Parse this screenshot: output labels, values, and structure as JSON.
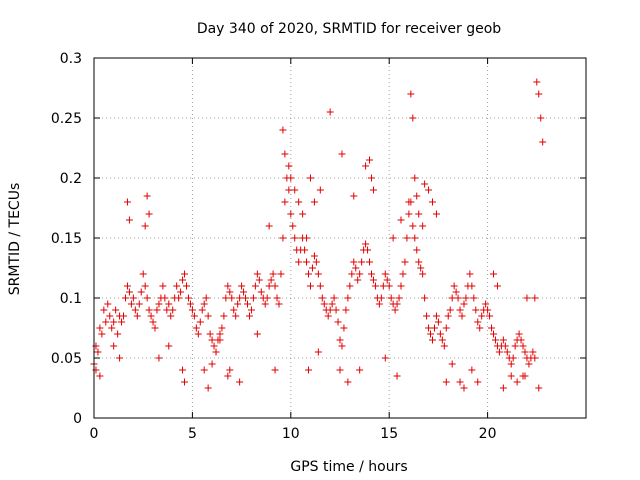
{
  "chart_data": {
    "type": "scatter",
    "title": "Day 340 of 2020, SRMTID for receiver geob",
    "xlabel": "GPS time / hours",
    "ylabel": "SRMTID / TECUs",
    "xlim": [
      0,
      25
    ],
    "ylim": [
      0,
      0.3
    ],
    "x_ticks": [
      0,
      5,
      10,
      15,
      20
    ],
    "x_tick_labels": [
      "0",
      "5",
      "10",
      "15",
      "20"
    ],
    "y_ticks": [
      0,
      0.05,
      0.1,
      0.15,
      0.2,
      0.25,
      0.3
    ],
    "y_tick_labels": [
      "0",
      "0.05",
      "0.1",
      "0.15",
      "0.2",
      "0.25",
      "0.3"
    ],
    "grid": true,
    "marker": "plus",
    "color": "#e00000",
    "series": [
      {
        "name": "SRMTID",
        "x": [
          0.0,
          0.1,
          0.2,
          0.3,
          0.4,
          0.5,
          0.6,
          0.7,
          0.8,
          0.9,
          1.0,
          1.1,
          1.2,
          1.3,
          1.4,
          1.5,
          1.6,
          1.7,
          1.8,
          1.9,
          2.0,
          2.1,
          2.2,
          2.3,
          2.4,
          2.5,
          2.6,
          2.7,
          2.8,
          2.9,
          3.0,
          3.1,
          3.2,
          3.3,
          3.4,
          3.5,
          3.6,
          3.7,
          3.8,
          3.9,
          4.0,
          4.1,
          4.2,
          4.3,
          4.4,
          4.5,
          4.6,
          4.7,
          4.8,
          4.9,
          5.0,
          5.1,
          5.2,
          5.3,
          5.4,
          5.5,
          5.6,
          5.7,
          5.8,
          5.9,
          6.0,
          6.1,
          6.2,
          6.3,
          6.4,
          6.5,
          6.6,
          6.7,
          6.8,
          6.9,
          7.0,
          7.1,
          7.2,
          7.3,
          7.4,
          7.5,
          7.6,
          7.7,
          7.8,
          7.9,
          8.0,
          8.1,
          8.2,
          8.3,
          8.4,
          8.5,
          8.6,
          8.7,
          8.8,
          8.9,
          9.0,
          9.1,
          9.2,
          9.3,
          9.4,
          9.5,
          9.6,
          9.7,
          9.8,
          9.9,
          10.0,
          10.1,
          10.2,
          10.3,
          10.4,
          10.5,
          10.6,
          10.7,
          10.8,
          10.9,
          11.0,
          11.1,
          11.2,
          11.3,
          11.4,
          11.5,
          11.6,
          11.7,
          11.8,
          11.9,
          12.0,
          12.1,
          12.2,
          12.3,
          12.4,
          12.5,
          12.6,
          12.7,
          12.8,
          12.9,
          13.0,
          13.1,
          13.2,
          13.3,
          13.4,
          13.5,
          13.6,
          13.7,
          13.8,
          13.9,
          14.0,
          14.1,
          14.2,
          14.3,
          14.4,
          14.5,
          14.6,
          14.7,
          14.8,
          14.9,
          15.0,
          15.1,
          15.2,
          15.3,
          15.4,
          15.5,
          15.6,
          15.7,
          15.8,
          15.9,
          16.0,
          16.1,
          16.2,
          16.3,
          16.4,
          16.5,
          16.6,
          16.7,
          16.8,
          16.9,
          17.0,
          17.1,
          17.2,
          17.3,
          17.4,
          17.5,
          17.6,
          17.7,
          17.8,
          17.9,
          18.0,
          18.1,
          18.2,
          18.3,
          18.4,
          18.5,
          18.6,
          18.7,
          18.8,
          18.9,
          19.0,
          19.1,
          19.2,
          19.3,
          19.4,
          19.5,
          19.6,
          19.7,
          19.8,
          19.9,
          20.0,
          20.1,
          20.2,
          20.3,
          20.4,
          20.5,
          20.6,
          20.7,
          20.8,
          20.9,
          21.0,
          21.1,
          21.2,
          21.3,
          21.4,
          21.5,
          21.6,
          21.7,
          21.8,
          21.9,
          22.0,
          22.1,
          22.2,
          22.3,
          22.4,
          22.5,
          22.6,
          22.7,
          22.8,
          9.6,
          9.7,
          9.9,
          10.0,
          10.2,
          10.4,
          10.6,
          10.8,
          11.0,
          11.2,
          11.5,
          12.0,
          12.6,
          13.2,
          13.8,
          14.0,
          14.1,
          14.2,
          16.0,
          16.1,
          16.2,
          16.3,
          16.4,
          16.5,
          16.7,
          16.8,
          17.0,
          17.2,
          17.4,
          2.6,
          2.7,
          2.8,
          1.7,
          1.8,
          4.5,
          4.6,
          6.8,
          6.9,
          6.0,
          6.2,
          6.4,
          8.3,
          8.9,
          12.5,
          12.9,
          15.2,
          15.6,
          18.6,
          18.8,
          19.5,
          20.3,
          20.5,
          21.5,
          21.8,
          22.0,
          22.4,
          22.6,
          0.1,
          0.3,
          1.0,
          1.3,
          3.3,
          3.8,
          5.6,
          5.8,
          7.4,
          9.2,
          10.9,
          11.4,
          13.5,
          14.8,
          15.4,
          17.9,
          18.2,
          19.2,
          20.8,
          21.2,
          21.9
        ],
        "y": [
          0.045,
          0.06,
          0.055,
          0.075,
          0.07,
          0.09,
          0.08,
          0.095,
          0.085,
          0.075,
          0.08,
          0.09,
          0.07,
          0.085,
          0.08,
          0.085,
          0.1,
          0.11,
          0.105,
          0.095,
          0.1,
          0.09,
          0.085,
          0.095,
          0.105,
          0.12,
          0.11,
          0.1,
          0.09,
          0.085,
          0.08,
          0.075,
          0.09,
          0.095,
          0.1,
          0.11,
          0.1,
          0.09,
          0.095,
          0.085,
          0.09,
          0.1,
          0.11,
          0.1,
          0.105,
          0.115,
          0.12,
          0.11,
          0.1,
          0.095,
          0.09,
          0.085,
          0.075,
          0.07,
          0.08,
          0.09,
          0.095,
          0.1,
          0.085,
          0.07,
          0.065,
          0.06,
          0.055,
          0.065,
          0.07,
          0.075,
          0.085,
          0.1,
          0.11,
          0.105,
          0.1,
          0.09,
          0.085,
          0.095,
          0.1,
          0.11,
          0.105,
          0.1,
          0.095,
          0.085,
          0.09,
          0.1,
          0.11,
          0.12,
          0.115,
          0.105,
          0.1,
          0.095,
          0.1,
          0.11,
          0.115,
          0.12,
          0.11,
          0.1,
          0.095,
          0.12,
          0.15,
          0.18,
          0.2,
          0.19,
          0.17,
          0.16,
          0.15,
          0.14,
          0.13,
          0.14,
          0.15,
          0.14,
          0.13,
          0.12,
          0.11,
          0.125,
          0.135,
          0.13,
          0.12,
          0.11,
          0.1,
          0.095,
          0.09,
          0.085,
          0.09,
          0.095,
          0.1,
          0.09,
          0.08,
          0.065,
          0.06,
          0.075,
          0.09,
          0.1,
          0.11,
          0.12,
          0.13,
          0.125,
          0.115,
          0.12,
          0.13,
          0.14,
          0.145,
          0.14,
          0.13,
          0.12,
          0.115,
          0.11,
          0.1,
          0.095,
          0.1,
          0.11,
          0.12,
          0.115,
          0.11,
          0.1,
          0.095,
          0.09,
          0.095,
          0.1,
          0.11,
          0.12,
          0.13,
          0.15,
          0.17,
          0.18,
          0.16,
          0.15,
          0.14,
          0.13,
          0.125,
          0.12,
          0.1,
          0.085,
          0.075,
          0.07,
          0.065,
          0.075,
          0.085,
          0.08,
          0.07,
          0.065,
          0.06,
          0.075,
          0.085,
          0.09,
          0.1,
          0.11,
          0.105,
          0.1,
          0.09,
          0.085,
          0.095,
          0.1,
          0.11,
          0.12,
          0.11,
          0.1,
          0.09,
          0.08,
          0.075,
          0.085,
          0.09,
          0.095,
          0.09,
          0.085,
          0.075,
          0.07,
          0.065,
          0.06,
          0.055,
          0.06,
          0.065,
          0.06,
          0.055,
          0.05,
          0.045,
          0.05,
          0.06,
          0.065,
          0.07,
          0.065,
          0.06,
          0.055,
          0.05,
          0.045,
          0.05,
          0.055,
          0.05,
          0.28,
          0.27,
          0.25,
          0.23,
          0.24,
          0.22,
          0.21,
          0.2,
          0.19,
          0.18,
          0.17,
          0.15,
          0.2,
          0.18,
          0.19,
          0.255,
          0.22,
          0.185,
          0.21,
          0.215,
          0.2,
          0.19,
          0.18,
          0.27,
          0.25,
          0.2,
          0.185,
          0.17,
          0.16,
          0.195,
          0.19,
          0.18,
          0.17,
          0.16,
          0.185,
          0.17,
          0.18,
          0.165,
          0.04,
          0.03,
          0.035,
          0.04,
          0.045,
          0.055,
          0.065,
          0.07,
          0.16,
          0.04,
          0.03,
          0.15,
          0.165,
          0.03,
          0.025,
          0.03,
          0.12,
          0.11,
          0.03,
          0.035,
          0.1,
          0.1,
          0.025,
          0.04,
          0.035,
          0.06,
          0.05,
          0.05,
          0.06,
          0.04,
          0.025,
          0.03,
          0.04,
          0.04,
          0.055,
          0.04,
          0.05,
          0.035,
          0.03,
          0.045,
          0.04,
          0.025,
          0.035,
          0.035
        ]
      }
    ]
  }
}
